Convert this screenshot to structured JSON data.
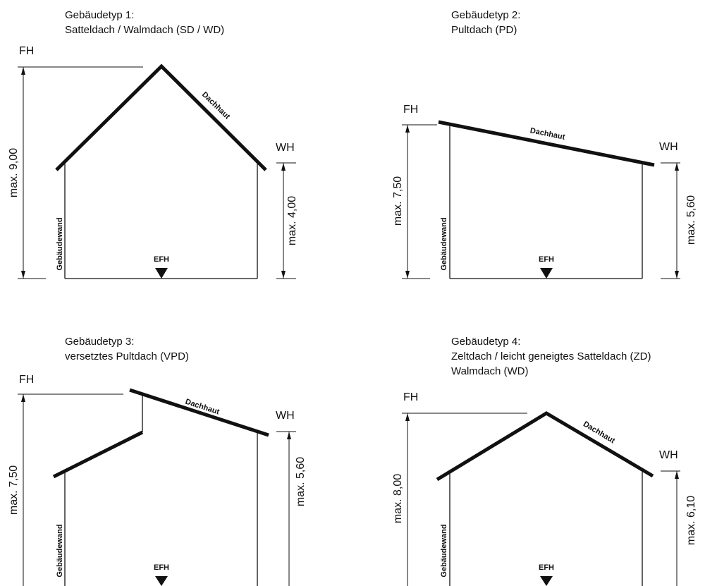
{
  "buildings": [
    {
      "title": [
        "Gebäudetyp 1:",
        "Satteldach / Walmdach (SD / WD)"
      ],
      "fh_label": "FH",
      "wh_label": "WH",
      "fh_dim": "max. 9,00",
      "wh_dim": "max. 4,00",
      "roof_label": "Dachhaut",
      "wall_label": "Gebäudewand",
      "floor_label": "EFH"
    },
    {
      "title": [
        "Gebäudetyp 2:",
        "Pultdach (PD)"
      ],
      "fh_label": "FH",
      "wh_label": "WH",
      "fh_dim": "max. 7,50",
      "wh_dim": "max. 5,60",
      "roof_label": "Dachhaut",
      "wall_label": "Gebäudewand",
      "floor_label": "EFH"
    },
    {
      "title": [
        "Gebäudetyp 3:",
        "versetztes Pultdach (VPD)"
      ],
      "fh_label": "FH",
      "wh_label": "WH",
      "fh_dim": "max. 7,50",
      "wh_dim": "max. 5,60",
      "roof_label": "Dachhaut",
      "wall_label": "Gebäudewand",
      "floor_label": "EFH"
    },
    {
      "title": [
        "Gebäudetyp 4:",
        "Zeltdach / leicht geneigtes Satteldach (ZD)",
        "Walmdach (WD)"
      ],
      "fh_label": "FH",
      "wh_label": "WH",
      "fh_dim": "max. 8,00",
      "wh_dim": "max. 6,10",
      "roof_label": "Dachhaut",
      "wall_label": "Gebäudewand",
      "floor_label": "EFH"
    }
  ]
}
